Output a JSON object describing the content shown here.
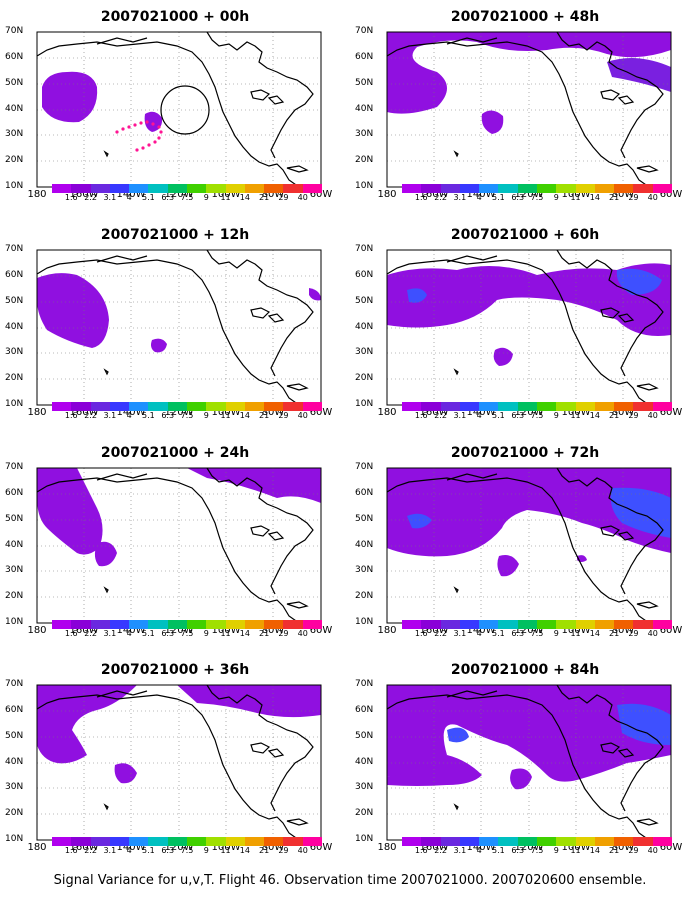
{
  "colorbar": {
    "labels": [
      "1.6",
      "2.2",
      "3.1",
      "4",
      "5.1",
      "6.3",
      "7.5",
      "9",
      "11",
      "14",
      "21",
      "29",
      "40"
    ],
    "colors": [
      "#b000ee",
      "#8a00d8",
      "#6a28e0",
      "#3838ff",
      "#1e90ff",
      "#00c0c0",
      "#00c060",
      "#40d000",
      "#a0e000",
      "#e0d000",
      "#f0a000",
      "#f06000",
      "#f03030",
      "#ff00a0"
    ]
  },
  "axes": {
    "y_labels": [
      "70N",
      "60N",
      "50N",
      "40N",
      "30N",
      "20N",
      "10N"
    ],
    "x_labels": [
      "180",
      "160W",
      "140W",
      "120W",
      "100W",
      "80W",
      "60W"
    ]
  },
  "panels": [
    {
      "id": "p00",
      "title": "2007021000 + 00h"
    },
    {
      "id": "p48",
      "title": "2007021000 + 48h"
    },
    {
      "id": "p12",
      "title": "2007021000 + 12h"
    },
    {
      "id": "p60",
      "title": "2007021000 + 60h"
    },
    {
      "id": "p24",
      "title": "2007021000 + 24h"
    },
    {
      "id": "p72",
      "title": "2007021000 + 72h"
    },
    {
      "id": "p36",
      "title": "2007021000 + 36h"
    },
    {
      "id": "p84",
      "title": "2007021000 + 84h"
    }
  ],
  "caption": "Signal Variance for u,v,T. Flight 46. Observation time 2007021000. 2007020600 ensemble."
}
